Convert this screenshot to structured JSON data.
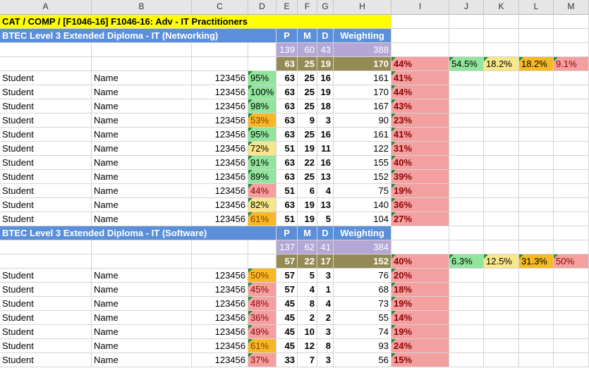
{
  "columns": [
    "A",
    "B",
    "C",
    "D",
    "E",
    "F",
    "G",
    "H",
    "I",
    "J",
    "K",
    "L",
    "M"
  ],
  "colors": {
    "yellow": "#ffff00",
    "blue_header": "#5b8fd9",
    "purple": "#b4a7d6",
    "olive": "#948a54",
    "green": "#92e59c",
    "light_yellow": "#f7e68a",
    "orange": "#f6b926",
    "red": "#f4a0a0",
    "indicator": "#1f8a3a"
  },
  "title": "CAT / COMP / [F1046-16] F1046-16: Adv - IT Practitioners",
  "sections": [
    {
      "heading": "BTEC Level 3 Extended Diploma - IT (Networking)",
      "col_labels": [
        "P",
        "M",
        "D",
        "Weighting"
      ],
      "max": [
        "139",
        "60",
        "43",
        "388"
      ],
      "avg": {
        "p": "63",
        "m": "25",
        "d": "19",
        "w": "170",
        "pct": "44%"
      },
      "bands": [
        "54.5%",
        "18.2%",
        "18.2%",
        "9.1%"
      ],
      "rows": [
        {
          "name": "Student",
          "last": "Name",
          "id": "123456",
          "pct": "95%",
          "p": "63",
          "m": "25",
          "d": "16",
          "w": "161",
          "wpct": "41%",
          "band": "green"
        },
        {
          "name": "Student",
          "last": "Name",
          "id": "123456",
          "pct": "100%",
          "p": "63",
          "m": "25",
          "d": "19",
          "w": "170",
          "wpct": "44%",
          "band": "green"
        },
        {
          "name": "Student",
          "last": "Name",
          "id": "123456",
          "pct": "98%",
          "p": "63",
          "m": "25",
          "d": "18",
          "w": "167",
          "wpct": "43%",
          "band": "green"
        },
        {
          "name": "Student",
          "last": "Name",
          "id": "123456",
          "pct": "53%",
          "p": "63",
          "m": "9",
          "d": "3",
          "w": "90",
          "wpct": "23%",
          "band": "orange"
        },
        {
          "name": "Student",
          "last": "Name",
          "id": "123456",
          "pct": "95%",
          "p": "63",
          "m": "25",
          "d": "16",
          "w": "161",
          "wpct": "41%",
          "band": "green"
        },
        {
          "name": "Student",
          "last": "Name",
          "id": "123456",
          "pct": "72%",
          "p": "51",
          "m": "19",
          "d": "11",
          "w": "122",
          "wpct": "31%",
          "band": "light_yellow"
        },
        {
          "name": "Student",
          "last": "Name",
          "id": "123456",
          "pct": "91%",
          "p": "63",
          "m": "22",
          "d": "16",
          "w": "155",
          "wpct": "40%",
          "band": "green"
        },
        {
          "name": "Student",
          "last": "Name",
          "id": "123456",
          "pct": "89%",
          "p": "63",
          "m": "25",
          "d": "13",
          "w": "152",
          "wpct": "39%",
          "band": "green"
        },
        {
          "name": "Student",
          "last": "Name",
          "id": "123456",
          "pct": "44%",
          "p": "51",
          "m": "6",
          "d": "4",
          "w": "75",
          "wpct": "19%",
          "band": "red"
        },
        {
          "name": "Student",
          "last": "Name",
          "id": "123456",
          "pct": "82%",
          "p": "63",
          "m": "19",
          "d": "13",
          "w": "140",
          "wpct": "36%",
          "band": "light_yellow"
        },
        {
          "name": "Student",
          "last": "Name",
          "id": "123456",
          "pct": "61%",
          "p": "51",
          "m": "19",
          "d": "5",
          "w": "104",
          "wpct": "27%",
          "band": "orange"
        }
      ]
    },
    {
      "heading": "BTEC Level 3 Extended Diploma - IT (Software)",
      "col_labels": [
        "P",
        "M",
        "D",
        "Weighting"
      ],
      "max": [
        "137",
        "62",
        "41",
        "384"
      ],
      "avg": {
        "p": "57",
        "m": "22",
        "d": "17",
        "w": "152",
        "pct": "40%"
      },
      "bands": [
        "6.3%",
        "12.5%",
        "31.3%",
        "50%"
      ],
      "rows": [
        {
          "name": "Student",
          "last": "Name",
          "id": "123456",
          "pct": "50%",
          "p": "57",
          "m": "5",
          "d": "3",
          "w": "76",
          "wpct": "20%",
          "band": "orange"
        },
        {
          "name": "Student",
          "last": "Name",
          "id": "123456",
          "pct": "45%",
          "p": "57",
          "m": "4",
          "d": "1",
          "w": "68",
          "wpct": "18%",
          "band": "red"
        },
        {
          "name": "Student",
          "last": "Name",
          "id": "123456",
          "pct": "48%",
          "p": "45",
          "m": "8",
          "d": "4",
          "w": "73",
          "wpct": "19%",
          "band": "red"
        },
        {
          "name": "Student",
          "last": "Name",
          "id": "123456",
          "pct": "36%",
          "p": "45",
          "m": "2",
          "d": "2",
          "w": "55",
          "wpct": "14%",
          "band": "red"
        },
        {
          "name": "Student",
          "last": "Name",
          "id": "123456",
          "pct": "49%",
          "p": "45",
          "m": "10",
          "d": "3",
          "w": "74",
          "wpct": "19%",
          "band": "red"
        },
        {
          "name": "Student",
          "last": "Name",
          "id": "123456",
          "pct": "61%",
          "p": "45",
          "m": "12",
          "d": "8",
          "w": "93",
          "wpct": "24%",
          "band": "orange"
        },
        {
          "name": "Student",
          "last": "Name",
          "id": "123456",
          "pct": "37%",
          "p": "33",
          "m": "7",
          "d": "3",
          "w": "56",
          "wpct": "15%",
          "band": "red"
        }
      ]
    }
  ]
}
